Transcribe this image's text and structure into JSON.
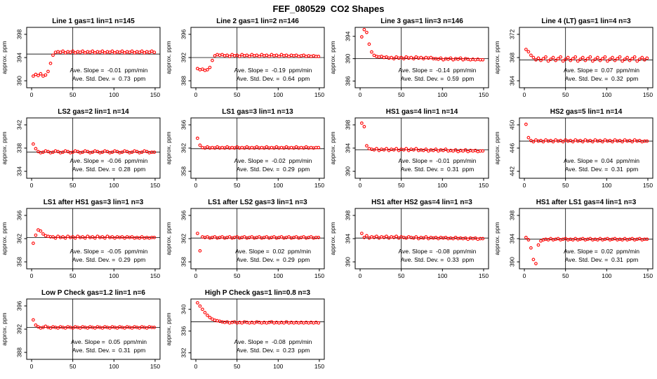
{
  "chart_data": {
    "type": "scatter",
    "suptitle": "FEF_080529  CO2 Shapes",
    "ylabel": "approx. ppm",
    "point_color": "#ff0000",
    "axis_color": "#000000",
    "xticks": [
      0,
      50,
      100,
      150
    ],
    "xlim": [
      -6,
      156
    ],
    "vline_x": 50,
    "x": [
      2,
      5,
      8,
      11,
      14,
      17,
      20,
      23,
      26,
      29,
      32,
      35,
      38,
      41,
      44,
      47,
      50,
      53,
      56,
      59,
      62,
      65,
      68,
      71,
      74,
      77,
      80,
      83,
      86,
      89,
      92,
      95,
      98,
      101,
      104,
      107,
      110,
      113,
      116,
      119,
      122,
      125,
      128,
      131,
      134,
      137,
      140,
      143,
      146,
      149
    ],
    "plots": [
      {
        "title": "Line 1 gas=1 lin=1 n=145",
        "yticks": [
          390,
          394,
          398
        ],
        "ylim": [
          388.8,
          399.2
        ],
        "hline": 394.6,
        "slope_text": "Ave. Slope =  -0.01  ppm/min",
        "std_text": "Ave. Std. Dev. =  0.73  ppm",
        "y": [
          390.8,
          391.1,
          390.9,
          391.2,
          390.8,
          391.0,
          391.6,
          393.0,
          394.4,
          394.9,
          395.0,
          394.9,
          395.1,
          394.8,
          395.0,
          394.9,
          395.1,
          394.8,
          395.0,
          394.9,
          395.1,
          394.8,
          395.0,
          394.9,
          395.1,
          394.8,
          395.0,
          394.9,
          395.1,
          394.8,
          395.0,
          394.9,
          395.1,
          394.8,
          395.0,
          394.9,
          395.1,
          394.8,
          395.0,
          394.9,
          395.1,
          394.8,
          395.0,
          394.9,
          395.1,
          394.8,
          395.0,
          394.9,
          395.1,
          394.9
        ]
      },
      {
        "title": "Line 2 gas=1 lin=2 n=146",
        "yticks": [
          388,
          392,
          396
        ],
        "ylim": [
          386.8,
          397.2
        ],
        "hline": 392.0,
        "slope_text": "Ave. Slope =  -0.19  ppm/min",
        "std_text": "Ave. Std. Dev. =  0.64  ppm",
        "y": [
          390.1,
          389.9,
          390.0,
          389.8,
          389.9,
          390.3,
          391.5,
          392.3,
          392.5,
          392.4,
          392.5,
          392.3,
          392.4,
          392.2,
          392.5,
          392.3,
          392.4,
          392.2,
          392.5,
          392.3,
          392.4,
          392.2,
          392.5,
          392.3,
          392.4,
          392.2,
          392.5,
          392.3,
          392.4,
          392.2,
          392.5,
          392.3,
          392.4,
          392.2,
          392.5,
          392.3,
          392.4,
          392.2,
          392.4,
          392.3,
          392.4,
          392.2,
          392.3,
          392.4,
          392.2,
          392.3,
          392.2,
          392.3,
          392.2,
          392.2
        ]
      },
      {
        "title": "Line 3 gas=1 lin=3 n=146",
        "yticks": [
          386,
          390,
          394
        ],
        "ylim": [
          384.8,
          395.6
        ],
        "hline": 390.0,
        "slope_text": "Ave. Slope =  -0.14  ppm/min",
        "std_text": "Ave. Std. Dev. =  0.59  ppm",
        "y": [
          393.9,
          395.2,
          394.7,
          392.6,
          391.2,
          390.6,
          390.4,
          390.3,
          390.4,
          390.2,
          390.3,
          390.1,
          390.2,
          390.0,
          390.3,
          390.1,
          390.2,
          390.0,
          390.3,
          390.1,
          390.2,
          390.0,
          390.3,
          390.1,
          390.2,
          390.0,
          390.2,
          390.1,
          390.2,
          390.0,
          390.0,
          389.9,
          390.1,
          389.8,
          390.0,
          389.9,
          390.1,
          389.8,
          390.0,
          389.9,
          390.1,
          389.8,
          390.0,
          389.9,
          389.8,
          389.9,
          389.8,
          389.9,
          389.8,
          389.8
        ]
      },
      {
        "title": "Line 4 (LT) gas=1 lin=4 n=3",
        "yticks": [
          364,
          368,
          372
        ],
        "ylim": [
          362.8,
          373.2
        ],
        "hline": 367.6,
        "slope_text": "Ave. Slope =  0.07  ppm/min",
        "std_text": "Ave. Std. Dev. =  0.32  ppm",
        "y": [
          369.4,
          369.0,
          368.4,
          368.0,
          367.6,
          367.9,
          367.5,
          367.8,
          368.1,
          367.4,
          367.7,
          368.0,
          367.5,
          367.8,
          368.1,
          367.4,
          367.7,
          368.0,
          367.5,
          367.8,
          368.1,
          367.4,
          367.7,
          368.0,
          367.5,
          367.8,
          368.1,
          367.4,
          367.7,
          368.0,
          367.5,
          367.8,
          368.1,
          367.4,
          367.7,
          368.0,
          367.5,
          367.8,
          368.1,
          367.4,
          367.7,
          368.0,
          367.5,
          367.8,
          368.1,
          367.4,
          367.7,
          368.0,
          367.6,
          367.9
        ]
      },
      {
        "title": "LS2 gas=2 lin=1 n=14",
        "yticks": [
          334,
          338,
          342
        ],
        "ylim": [
          332.8,
          343.2
        ],
        "hline": 337.3,
        "slope_text": "Ave. Slope =  -0.06  ppm/min",
        "std_text": "Ave. Std. Dev. =  0.28  ppm",
        "y": [
          338.7,
          337.9,
          337.4,
          337.2,
          337.3,
          337.5,
          337.4,
          337.2,
          337.3,
          337.5,
          337.4,
          337.2,
          337.3,
          337.5,
          337.4,
          337.2,
          337.3,
          337.5,
          337.4,
          337.2,
          337.3,
          337.5,
          337.4,
          337.2,
          337.3,
          337.5,
          337.4,
          337.2,
          337.3,
          337.5,
          337.4,
          337.2,
          337.3,
          337.5,
          337.4,
          337.2,
          337.3,
          337.5,
          337.4,
          337.2,
          337.3,
          337.5,
          337.4,
          337.2,
          337.3,
          337.5,
          337.4,
          337.2,
          337.3,
          337.3
        ]
      },
      {
        "title": "LS1 gas=3 lin=1 n=13",
        "yticks": [
          358,
          362,
          366
        ],
        "ylim": [
          356.8,
          367.2
        ],
        "hline": 361.9,
        "slope_text": "Ave. Slope =  -0.02  ppm/min",
        "std_text": "Ave. Std. Dev. =  0.29  ppm",
        "y": [
          363.7,
          362.5,
          362.1,
          362.0,
          362.2,
          362.0,
          362.1,
          362.0,
          362.2,
          362.0,
          362.1,
          362.0,
          362.2,
          362.0,
          362.1,
          362.0,
          362.2,
          362.0,
          362.1,
          362.0,
          362.2,
          362.0,
          362.1,
          362.0,
          362.2,
          362.0,
          362.1,
          362.0,
          362.2,
          362.0,
          362.1,
          362.0,
          362.2,
          362.0,
          362.1,
          362.0,
          362.2,
          362.0,
          362.1,
          362.0,
          362.2,
          362.0,
          362.1,
          362.0,
          362.2,
          362.0,
          362.1,
          362.0,
          362.1,
          362.1
        ]
      },
      {
        "title": "HS1 gas=4 lin=1 n=14",
        "yticks": [
          390,
          394,
          398
        ],
        "ylim": [
          388.8,
          399.2
        ],
        "hline": 393.7,
        "slope_text": "Ave. Slope =  -0.01  ppm/min",
        "std_text": "Ave. Std. Dev. =  0.31  ppm",
        "y": [
          398.3,
          397.7,
          394.4,
          393.9,
          393.8,
          393.7,
          393.9,
          393.6,
          393.8,
          393.7,
          393.9,
          393.6,
          393.8,
          393.7,
          393.9,
          393.6,
          393.8,
          393.7,
          393.9,
          393.6,
          393.8,
          393.7,
          393.9,
          393.6,
          393.7,
          393.6,
          393.8,
          393.5,
          393.7,
          393.6,
          393.8,
          393.5,
          393.7,
          393.6,
          393.8,
          393.5,
          393.6,
          393.5,
          393.7,
          393.4,
          393.6,
          393.5,
          393.7,
          393.4,
          393.6,
          393.5,
          393.6,
          393.4,
          393.5,
          393.5
        ]
      },
      {
        "title": "HS2 gas=5 lin=1 n=14",
        "yticks": [
          442,
          446,
          450
        ],
        "ylim": [
          440.8,
          451.2
        ],
        "hline": 447.2,
        "slope_text": "Ave. Slope =  0.04  ppm/min",
        "std_text": "Ave. Std. Dev. =  0.31  ppm",
        "y": [
          450.1,
          447.8,
          447.3,
          447.1,
          447.4,
          447.2,
          447.3,
          447.1,
          447.4,
          447.2,
          447.3,
          447.1,
          447.4,
          447.2,
          447.3,
          447.1,
          447.4,
          447.2,
          447.3,
          447.1,
          447.4,
          447.2,
          447.3,
          447.1,
          447.4,
          447.2,
          447.3,
          447.1,
          447.4,
          447.2,
          447.3,
          447.1,
          447.4,
          447.2,
          447.3,
          447.1,
          447.4,
          447.2,
          447.3,
          447.1,
          447.4,
          447.2,
          447.3,
          447.1,
          447.4,
          447.2,
          447.3,
          447.1,
          447.2,
          447.2
        ]
      },
      {
        "title": "LS1 after HS1 gas=3 lin=1 n=3",
        "yticks": [
          358,
          362,
          366
        ],
        "ylim": [
          356.8,
          367.2
        ],
        "hline": 362.2,
        "slope_text": "Ave. Slope =  -0.05  ppm/min",
        "std_text": "Ave. Std. Dev. =  0.29  ppm",
        "y": [
          361.2,
          362.6,
          363.5,
          363.3,
          362.8,
          362.5,
          362.4,
          362.3,
          362.3,
          362.1,
          362.4,
          362.2,
          362.3,
          362.1,
          362.4,
          362.2,
          362.3,
          362.1,
          362.4,
          362.2,
          362.3,
          362.1,
          362.4,
          362.2,
          362.3,
          362.1,
          362.4,
          362.2,
          362.3,
          362.1,
          362.4,
          362.2,
          362.3,
          362.1,
          362.3,
          362.2,
          362.3,
          362.1,
          362.3,
          362.2,
          362.3,
          362.1,
          362.2,
          362.1,
          362.3,
          362.1,
          362.2,
          362.1,
          362.2,
          362.2
        ]
      },
      {
        "title": "LS1 after LS2 gas=3 lin=1 n=3",
        "yticks": [
          358,
          362,
          366
        ],
        "ylim": [
          356.8,
          367.2
        ],
        "hline": 362.1,
        "slope_text": "Ave. Slope =  0.02  ppm/min",
        "std_text": "Ave. Std. Dev. =  0.29  ppm",
        "y": [
          362.9,
          359.9,
          362.3,
          362.2,
          362.3,
          362.1,
          362.2,
          362.3,
          362.1,
          362.2,
          362.3,
          362.1,
          362.2,
          362.3,
          362.1,
          362.2,
          362.3,
          362.1,
          362.2,
          362.3,
          362.1,
          362.2,
          362.3,
          362.1,
          362.2,
          362.3,
          362.1,
          362.2,
          362.3,
          362.1,
          362.2,
          362.3,
          362.1,
          362.2,
          362.3,
          362.1,
          362.2,
          362.3,
          362.1,
          362.2,
          362.3,
          362.1,
          362.2,
          362.3,
          362.1,
          362.2,
          362.3,
          362.1,
          362.2,
          362.2
        ]
      },
      {
        "title": "HS1 after HS2 gas=4 lin=1 n=3",
        "yticks": [
          390,
          394,
          398
        ],
        "ylim": [
          388.8,
          399.2
        ],
        "hline": 394.1,
        "slope_text": "Ave. Slope =  -0.08  ppm/min",
        "std_text": "Ave. Std. Dev. =  0.33  ppm",
        "y": [
          394.9,
          394.2,
          394.5,
          394.1,
          394.3,
          394.2,
          394.4,
          394.1,
          394.3,
          394.2,
          394.4,
          394.1,
          394.3,
          394.2,
          394.4,
          394.1,
          394.3,
          394.2,
          394.1,
          394.3,
          394.2,
          394.1,
          394.3,
          394.0,
          394.2,
          394.1,
          394.3,
          394.0,
          394.2,
          394.1,
          394.2,
          394.0,
          394.2,
          394.1,
          394.2,
          394.0,
          394.1,
          394.0,
          394.2,
          394.0,
          394.1,
          394.0,
          394.1,
          393.9,
          394.1,
          394.0,
          394.1,
          393.9,
          394.0,
          394.0
        ]
      },
      {
        "title": "HS1 after LS1 gas=4 lin=1 n=3",
        "yticks": [
          390,
          394,
          398
        ],
        "ylim": [
          388.8,
          399.2
        ],
        "hline": 393.9,
        "slope_text": "Ave. Slope =  0.02  ppm/min",
        "std_text": "Ave. Std. Dev. =  0.31  ppm",
        "y": [
          394.2,
          393.8,
          392.4,
          390.4,
          389.7,
          392.9,
          393.6,
          393.8,
          393.9,
          393.8,
          394.0,
          393.8,
          393.9,
          394.0,
          393.8,
          393.9,
          394.0,
          393.8,
          393.9,
          393.8,
          394.0,
          393.8,
          393.9,
          394.0,
          393.8,
          393.9,
          394.0,
          393.8,
          393.9,
          393.8,
          394.0,
          393.8,
          393.9,
          394.0,
          393.8,
          393.9,
          394.0,
          393.8,
          393.9,
          393.8,
          394.0,
          393.8,
          393.9,
          394.0,
          393.8,
          393.9,
          394.0,
          393.8,
          393.9,
          393.9
        ]
      },
      {
        "title": "Low P Check gas=1.2 lin=1 n=6",
        "yticks": [
          388,
          392,
          396
        ],
        "ylim": [
          386.8,
          397.2
        ],
        "hline": 392.3,
        "slope_text": "Ave. Slope =  0.05  ppm/min",
        "std_text": "Ave. Std. Dev. =  0.31  ppm",
        "y": [
          393.6,
          392.7,
          392.4,
          392.2,
          392.3,
          392.5,
          392.3,
          392.2,
          392.4,
          392.3,
          392.2,
          392.4,
          392.3,
          392.2,
          392.4,
          392.3,
          392.2,
          392.4,
          392.3,
          392.2,
          392.4,
          392.3,
          392.2,
          392.4,
          392.3,
          392.2,
          392.4,
          392.3,
          392.2,
          392.4,
          392.3,
          392.2,
          392.4,
          392.3,
          392.2,
          392.4,
          392.3,
          392.2,
          392.4,
          392.3,
          392.2,
          392.4,
          392.3,
          392.2,
          392.4,
          392.3,
          392.2,
          392.4,
          392.3,
          392.3
        ]
      },
      {
        "title": "High P Check gas=1 lin=0.8 n=3",
        "yticks": [
          332,
          336,
          340
        ],
        "ylim": [
          330.8,
          341.9
        ],
        "hline": 337.7,
        "slope_text": "Ave. Slope =  -0.08  ppm/min",
        "std_text": "Ave. Std. Dev. =  0.23  ppm",
        "y": [
          341.2,
          340.6,
          340.0,
          339.4,
          338.9,
          338.5,
          338.2,
          338.0,
          337.9,
          337.8,
          337.7,
          337.6,
          337.7,
          337.5,
          337.6,
          337.7,
          337.5,
          337.6,
          337.5,
          337.7,
          337.6,
          337.5,
          337.6,
          337.5,
          337.7,
          337.6,
          337.5,
          337.6,
          337.5,
          337.6,
          337.7,
          337.5,
          337.6,
          337.5,
          337.6,
          337.5,
          337.7,
          337.5,
          337.6,
          337.5,
          337.6,
          337.5,
          337.6,
          337.5,
          337.6,
          337.5,
          337.6,
          337.5,
          337.6,
          337.5
        ]
      }
    ]
  }
}
